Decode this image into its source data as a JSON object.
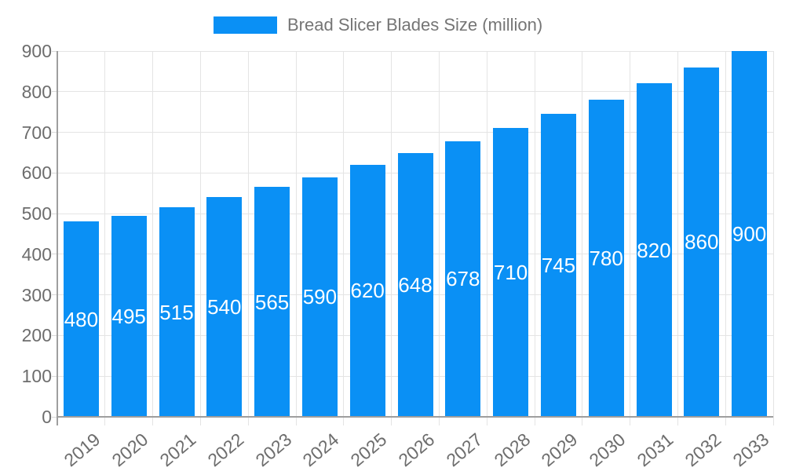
{
  "legend": {
    "label": "Bread Slicer Blades Size (million)"
  },
  "colors": {
    "bar": "#0a90f5",
    "bar_label": "#ffffff",
    "axis_text": "#6d6d6d",
    "legend_text": "#757575",
    "axis_line": "#9e9e9e",
    "grid_line": "#e4e4e4",
    "tick_line": "#d9d9d9",
    "background": "#ffffff"
  },
  "chart_data": {
    "type": "bar",
    "title": "Bread Slicer Blades Size (million)",
    "categories": [
      "2019",
      "2020",
      "2021",
      "2022",
      "2023",
      "2024",
      "2025",
      "2026",
      "2027",
      "2028",
      "2029",
      "2030",
      "2031",
      "2032",
      "2033"
    ],
    "values": [
      480,
      495,
      515,
      540,
      565,
      590,
      620,
      648,
      678,
      710,
      745,
      780,
      820,
      860,
      900
    ],
    "xlabel": "",
    "ylabel": "",
    "ylim": [
      0,
      900
    ],
    "yticks": [
      0,
      100,
      200,
      300,
      400,
      500,
      600,
      700,
      800,
      900
    ],
    "grid": true,
    "legend_position": "top",
    "bar_label_position": "center",
    "x_label_rotation_deg": -40
  }
}
